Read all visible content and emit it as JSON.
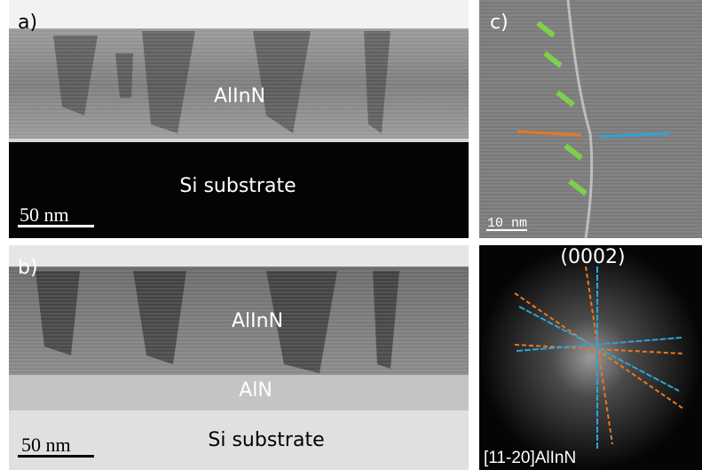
{
  "panels": {
    "a": {
      "label": "a)",
      "layer": "AlInN",
      "substrate": "Si substrate",
      "scale_bar": "50 nm"
    },
    "b": {
      "label": "b)",
      "layer": "AlInN",
      "buffer": "AlN",
      "substrate": "Si substrate",
      "scale_bar": "50 nm"
    },
    "c": {
      "label": "c)",
      "scale_bar": "10 nm"
    },
    "d": {
      "reflection": "(0002)",
      "zone_axis": "[11-20]AlInN"
    }
  }
}
